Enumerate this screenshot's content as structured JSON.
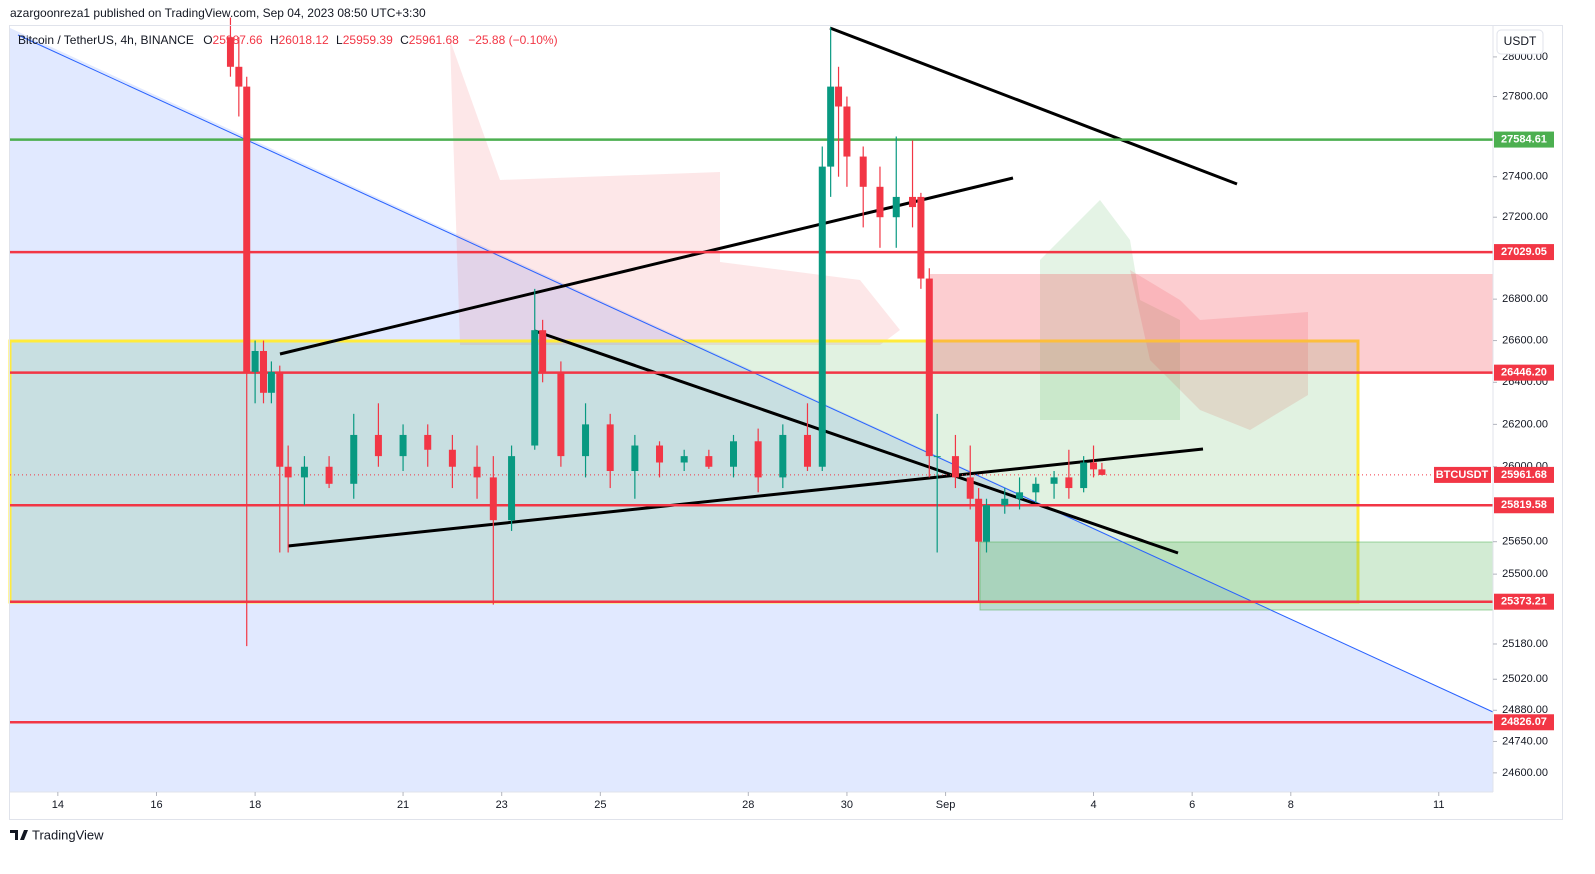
{
  "publisher_line": "azargoonreza1 published on TradingView.com, Sep 04, 2023 08:50 UTC+3:30",
  "footer_brand": "TradingView",
  "chart_data": {
    "type": "candlestick",
    "title": "Bitcoin / TetherUS, 4h, BINANCE",
    "ohlc_labels": [
      "O",
      "H",
      "L",
      "C"
    ],
    "change_label": "−25.88 (−0.10%)",
    "currency_button": "USDT",
    "symbol_tag": "BTCUSDT",
    "up_color": "#089981",
    "down_color": "#f23645",
    "log_scale": true,
    "grid": false,
    "xlim": [
      13.03,
      43.1
    ],
    "xticks": [
      14,
      16,
      18,
      21,
      23,
      25,
      28,
      30,
      {
        "value": 32,
        "label": "Sep"
      },
      {
        "value": 35,
        "label": "4"
      },
      {
        "value": 37,
        "label": "6"
      },
      {
        "value": 39,
        "label": "8"
      },
      {
        "value": 42,
        "label": "11"
      }
    ],
    "ylim": [
      24515,
      28162
    ],
    "yticks": [
      {
        "value": 24600,
        "label": "24600.00"
      },
      {
        "value": 24740,
        "label": "24740.00"
      },
      {
        "value": 24880,
        "label": "24880.00"
      },
      {
        "value": 25020,
        "label": "25020.00"
      },
      {
        "value": 25180,
        "label": "25180.00"
      },
      {
        "value": 25500,
        "label": "25500.00"
      },
      {
        "value": 25650,
        "label": "25650.00"
      },
      {
        "value": 26000,
        "label": "26000.00"
      },
      {
        "value": 26200,
        "label": "26200.00"
      },
      {
        "value": 26400,
        "label": "26400.00"
      },
      {
        "value": 26600,
        "label": "26600.00"
      },
      {
        "value": 26800,
        "label": "26800.00"
      },
      {
        "value": 27200,
        "label": "27200.00"
      },
      {
        "value": 27400,
        "label": "27400.00"
      },
      {
        "value": 27800,
        "label": "27800.00"
      },
      {
        "value": 28000,
        "label": "28000.00"
      }
    ],
    "levels": [
      {
        "value": 27584.61,
        "color": "#4caf50"
      },
      {
        "value": 27029.05,
        "color": "#f23645"
      },
      {
        "value": 26446.2,
        "label": "26446.20",
        "color": "#f23645"
      },
      {
        "value": 25819.58,
        "color": "#f23645"
      },
      {
        "value": 25373.21,
        "color": "#f23645"
      },
      {
        "value": 24826.07,
        "color": "#f23645"
      }
    ],
    "x": [
      17.5,
      17.67,
      17.83,
      18.0,
      18.17,
      18.33,
      18.5,
      18.67,
      19,
      19.5,
      20,
      20.5,
      21,
      21.5,
      22,
      22.5,
      22.83,
      23.2,
      23.67,
      23.83,
      24.2,
      24.7,
      25.2,
      25.7,
      26.2,
      26.7,
      27.2,
      27.7,
      28.2,
      28.7,
      29.2,
      29.5,
      29.67,
      29.83,
      30.0,
      30.33,
      30.67,
      31.0,
      31.33,
      31.5,
      31.67,
      31.83,
      32.2,
      32.5,
      32.67,
      32.83,
      33.2,
      33.5,
      33.83,
      34.2,
      34.5,
      34.8,
      35.0,
      35.17
    ],
    "ohlc": [
      [
        28100,
        28200,
        27900,
        27950
      ],
      [
        27950,
        28100,
        27700,
        27850
      ],
      [
        27850,
        27900,
        25170,
        26450
      ],
      [
        26450,
        26600,
        26300,
        26550
      ],
      [
        26550,
        26600,
        26300,
        26350
      ],
      [
        26350,
        26500,
        26300,
        26450
      ],
      [
        26450,
        26480,
        25600,
        26000
      ],
      [
        26000,
        26100,
        25600,
        25950
      ],
      [
        25950,
        26050,
        25820,
        26000
      ],
      [
        26000,
        26050,
        25900,
        25920
      ],
      [
        25920,
        26250,
        25850,
        26150
      ],
      [
        26150,
        26300,
        26000,
        26050
      ],
      [
        26050,
        26200,
        25980,
        26150
      ],
      [
        26150,
        26200,
        26000,
        26080
      ],
      [
        26080,
        26150,
        25900,
        26000
      ],
      [
        26000,
        26100,
        25850,
        25950
      ],
      [
        25950,
        26050,
        25360,
        25750
      ],
      [
        25750,
        26100,
        25700,
        26050
      ],
      [
        26100,
        26850,
        26080,
        26650
      ],
      [
        26650,
        26700,
        26400,
        26450
      ],
      [
        26450,
        26500,
        26000,
        26050
      ],
      [
        26050,
        26300,
        25950,
        26200
      ],
      [
        26200,
        26250,
        25900,
        25980
      ],
      [
        25980,
        26150,
        25850,
        26100
      ],
      [
        26100,
        26120,
        25950,
        26020
      ],
      [
        26020,
        26080,
        25980,
        26050
      ],
      [
        26050,
        26080,
        25990,
        26000
      ],
      [
        26000,
        26150,
        25950,
        26120
      ],
      [
        26120,
        26180,
        25880,
        25950
      ],
      [
        25950,
        26200,
        25900,
        26150
      ],
      [
        26150,
        26300,
        25980,
        26000
      ],
      [
        26000,
        27550,
        25980,
        27450
      ],
      [
        27450,
        28150,
        27300,
        27850
      ],
      [
        27850,
        27950,
        27400,
        27750
      ],
      [
        27750,
        27800,
        27350,
        27500
      ],
      [
        27500,
        27550,
        27150,
        27350
      ],
      [
        27350,
        27450,
        27050,
        27200
      ],
      [
        27200,
        27600,
        27050,
        27300
      ],
      [
        27300,
        27580,
        27150,
        27250
      ],
      [
        27300,
        27320,
        26850,
        26900
      ],
      [
        26900,
        26950,
        25950,
        26050
      ],
      [
        26050,
        26250,
        25600,
        26050
      ],
      [
        26050,
        26150,
        25900,
        25950
      ],
      [
        25950,
        26100,
        25800,
        25850
      ],
      [
        25850,
        25900,
        25373.21,
        25650
      ],
      [
        25650,
        25850,
        25600,
        25820
      ],
      [
        25820,
        25900,
        25780,
        25850
      ],
      [
        25850,
        25950,
        25800,
        25880
      ],
      [
        25880,
        25950,
        25830,
        25920
      ],
      [
        25920,
        25980,
        25850,
        25950
      ],
      [
        25950,
        26080,
        25850,
        25900
      ],
      [
        25900,
        26050,
        25880,
        26020
      ],
      [
        26020,
        26100,
        25950,
        25987.66
      ],
      [
        25987.66,
        26018.12,
        25959.39,
        25961.68
      ]
    ]
  }
}
